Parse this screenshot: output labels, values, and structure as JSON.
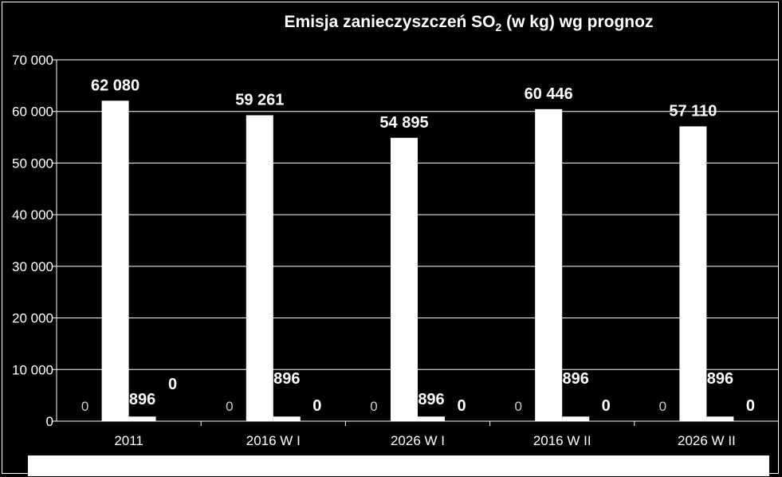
{
  "chart_data": {
    "type": "bar",
    "title_main": "Emisja zanieczyszczeń SO",
    "title_sub": "2",
    "title_rest": " (w kg) wg prognoz",
    "categories": [
      "2011",
      "2016 W I",
      "2026 W I",
      "2016 W II",
      "2026 W II"
    ],
    "series": [
      {
        "values": [
          0,
          0,
          0,
          0,
          0
        ]
      },
      {
        "values": [
          62080,
          59261,
          54895,
          60446,
          57110
        ]
      },
      {
        "values": [
          896,
          896,
          896,
          896,
          896
        ]
      },
      {
        "values": [
          0,
          0,
          0,
          0,
          0
        ]
      }
    ],
    "data_labels": [
      [
        "0",
        "62 080",
        "896",
        "0"
      ],
      [
        "0",
        "59 261",
        "896",
        "0"
      ],
      [
        "0",
        "54 895",
        "896",
        "0"
      ],
      [
        "0",
        "60 446",
        "896",
        "0"
      ],
      [
        "0",
        "57 110",
        "896",
        "0"
      ]
    ],
    "yticks": [
      "0",
      "10 000",
      "20 000",
      "30 000",
      "40 000",
      "50 000",
      "60 000",
      "70 000"
    ],
    "ylim": [
      0,
      70000
    ],
    "bar_color": "#ffffff",
    "background_color": "#000000",
    "grid": true
  }
}
